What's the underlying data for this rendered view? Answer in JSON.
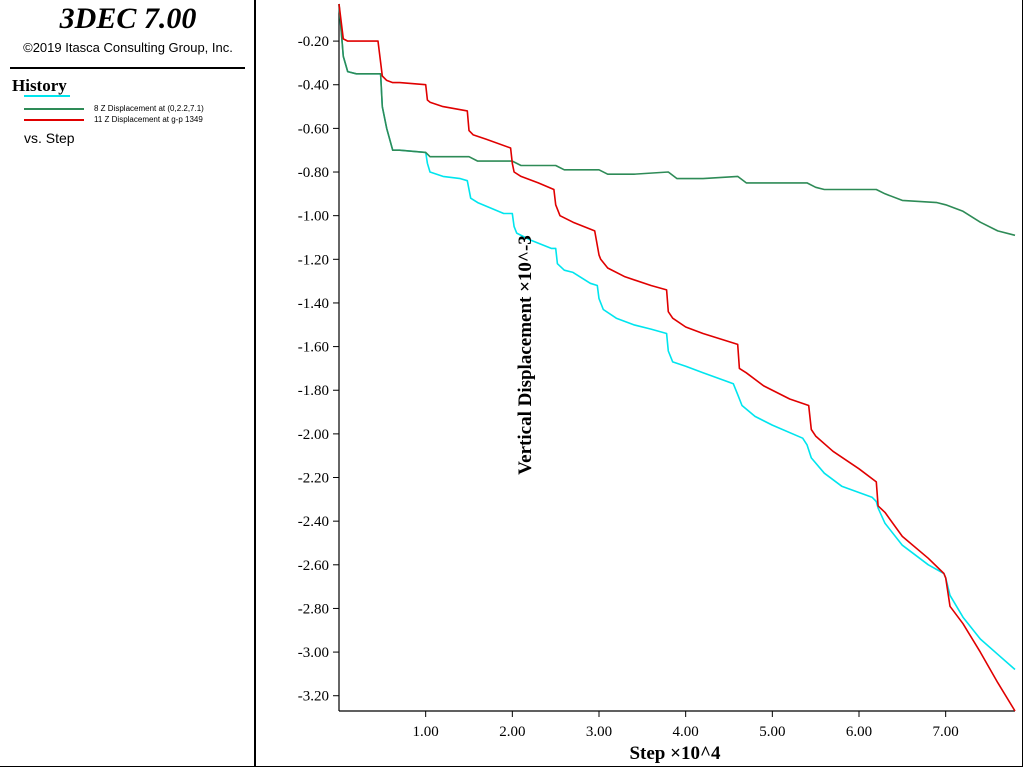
{
  "app": {
    "title": "3DEC 7.00",
    "copyright": "©2019 Itasca Consulting Group, Inc."
  },
  "legend": {
    "title": "History",
    "vs_label": "vs. Step",
    "items": [
      {
        "label": "",
        "color": "#00e5ee"
      },
      {
        "label": "8 Z Displacement at (0,2.2,7.1)",
        "color": "#2e8b57"
      },
      {
        "label": "11 Z Displacement at g-p 1349",
        "color": "#e00000"
      }
    ]
  },
  "chart_data": {
    "type": "line",
    "xlabel": "Step ×10^4",
    "ylabel": "Vertical Displacement ×10^-3",
    "xlim": [
      0,
      7.8
    ],
    "ylim": [
      -3.27,
      -0.03
    ],
    "xticks": [
      1,
      2,
      3,
      4,
      5,
      6,
      7
    ],
    "xtick_labels": [
      "1.00",
      "2.00",
      "3.00",
      "4.00",
      "5.00",
      "6.00",
      "7.00"
    ],
    "yticks": [
      -0.2,
      -0.4,
      -0.6,
      -0.8,
      -1.0,
      -1.2,
      -1.4,
      -1.6,
      -1.8,
      -2.0,
      -2.2,
      -2.4,
      -2.6,
      -2.8,
      -3.0,
      -3.2
    ],
    "ytick_labels": [
      "-0.20",
      "-0.40",
      "-0.60",
      "-0.80",
      "-1.00",
      "-1.20",
      "-1.40",
      "-1.60",
      "-1.80",
      "-2.00",
      "-2.20",
      "-2.40",
      "-2.60",
      "-2.80",
      "-3.00",
      "-3.20"
    ],
    "series": [
      {
        "color": "#00e5ee",
        "x": [
          0.0,
          0.05,
          0.1,
          0.2,
          0.4,
          0.48,
          0.5,
          0.55,
          0.62,
          0.7,
          1.0,
          1.02,
          1.05,
          1.2,
          1.4,
          1.48,
          1.52,
          1.6,
          1.9,
          2.0,
          2.02,
          2.05,
          2.2,
          2.45,
          2.5,
          2.52,
          2.6,
          2.7,
          2.9,
          2.98,
          3.0,
          3.05,
          3.2,
          3.4,
          3.6,
          3.78,
          3.8,
          3.85,
          4.0,
          4.2,
          4.55,
          4.6,
          4.65,
          4.8,
          5.0,
          5.35,
          5.4,
          5.45,
          5.6,
          5.8,
          6.15,
          6.2,
          6.22,
          6.3,
          6.5,
          6.8,
          6.98,
          7.0,
          7.05,
          7.2,
          7.4,
          7.6,
          7.8
        ],
        "y": [
          -0.03,
          -0.27,
          -0.34,
          -0.35,
          -0.35,
          -0.35,
          -0.5,
          -0.6,
          -0.7,
          -0.7,
          -0.71,
          -0.76,
          -0.8,
          -0.82,
          -0.83,
          -0.84,
          -0.92,
          -0.94,
          -0.99,
          -0.99,
          -1.05,
          -1.08,
          -1.11,
          -1.15,
          -1.15,
          -1.22,
          -1.25,
          -1.26,
          -1.31,
          -1.32,
          -1.38,
          -1.43,
          -1.47,
          -1.5,
          -1.52,
          -1.54,
          -1.62,
          -1.67,
          -1.69,
          -1.72,
          -1.77,
          -1.82,
          -1.87,
          -1.92,
          -1.96,
          -2.02,
          -2.05,
          -2.11,
          -2.18,
          -2.24,
          -2.29,
          -2.31,
          -2.34,
          -2.41,
          -2.51,
          -2.6,
          -2.64,
          -2.66,
          -2.74,
          -2.84,
          -2.94,
          -3.01,
          -3.08
        ]
      },
      {
        "color": "#2e8b57",
        "x": [
          0.0,
          0.05,
          0.1,
          0.2,
          0.4,
          0.48,
          0.5,
          0.55,
          0.62,
          0.7,
          1.0,
          1.05,
          1.5,
          1.6,
          1.8,
          2.0,
          2.1,
          2.5,
          2.6,
          2.9,
          3.0,
          3.1,
          3.4,
          3.8,
          3.9,
          4.2,
          4.6,
          4.7,
          5.4,
          5.5,
          5.6,
          6.2,
          6.3,
          6.5,
          6.9,
          7.0,
          7.2,
          7.4,
          7.6,
          7.8
        ],
        "y": [
          -0.03,
          -0.27,
          -0.34,
          -0.35,
          -0.35,
          -0.35,
          -0.5,
          -0.6,
          -0.7,
          -0.7,
          -0.71,
          -0.73,
          -0.73,
          -0.75,
          -0.75,
          -0.75,
          -0.77,
          -0.77,
          -0.79,
          -0.79,
          -0.79,
          -0.81,
          -0.81,
          -0.8,
          -0.83,
          -0.83,
          -0.82,
          -0.85,
          -0.85,
          -0.87,
          -0.88,
          -0.88,
          -0.9,
          -0.93,
          -0.94,
          -0.95,
          -0.98,
          -1.03,
          -1.07,
          -1.09
        ]
      },
      {
        "color": "#e00000",
        "x": [
          0.0,
          0.05,
          0.1,
          0.45,
          0.5,
          0.55,
          0.62,
          0.7,
          1.0,
          1.02,
          1.05,
          1.2,
          1.48,
          1.5,
          1.55,
          1.7,
          1.98,
          2.0,
          2.02,
          2.1,
          2.3,
          2.48,
          2.5,
          2.55,
          2.7,
          2.95,
          3.0,
          3.02,
          3.1,
          3.3,
          3.6,
          3.78,
          3.8,
          3.85,
          4.0,
          4.2,
          4.6,
          4.62,
          4.7,
          4.9,
          5.2,
          5.42,
          5.45,
          5.5,
          5.7,
          6.0,
          6.2,
          6.22,
          6.3,
          6.5,
          6.8,
          6.98,
          7.0,
          7.05,
          7.2,
          7.4,
          7.6,
          7.8
        ],
        "y": [
          -0.03,
          -0.19,
          -0.2,
          -0.2,
          -0.36,
          -0.38,
          -0.39,
          -0.39,
          -0.4,
          -0.47,
          -0.48,
          -0.5,
          -0.52,
          -0.61,
          -0.63,
          -0.65,
          -0.69,
          -0.76,
          -0.8,
          -0.82,
          -0.85,
          -0.88,
          -0.95,
          -1.0,
          -1.03,
          -1.07,
          -1.18,
          -1.2,
          -1.24,
          -1.28,
          -1.32,
          -1.34,
          -1.44,
          -1.47,
          -1.51,
          -1.54,
          -1.59,
          -1.7,
          -1.72,
          -1.78,
          -1.84,
          -1.87,
          -1.98,
          -2.01,
          -2.08,
          -2.16,
          -2.22,
          -2.33,
          -2.36,
          -2.47,
          -2.57,
          -2.64,
          -2.66,
          -2.79,
          -2.87,
          -3.0,
          -3.14,
          -3.27
        ]
      }
    ]
  }
}
